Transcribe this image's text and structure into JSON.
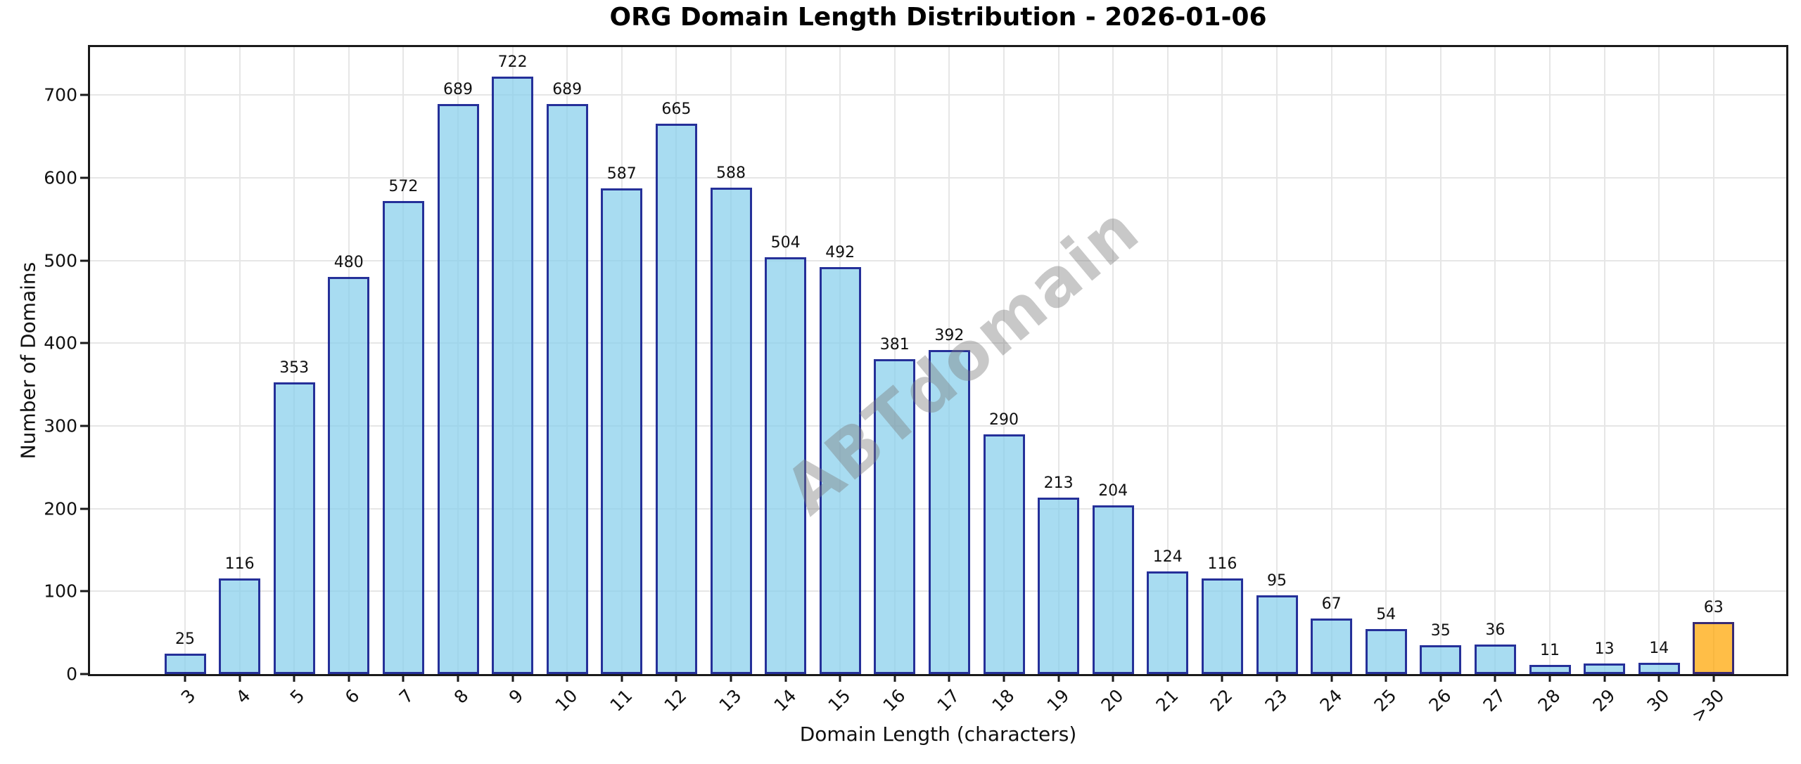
{
  "figure": {
    "title": "ORG Domain Length Distribution - 2026-01-06",
    "watermark": "ABTdomain"
  },
  "chart_data": {
    "type": "bar",
    "title": "ORG Domain Length Distribution - 2026-01-06",
    "xlabel": "Domain Length (characters)",
    "ylabel": "Number of Domains",
    "categories": [
      "3",
      "4",
      "5",
      "6",
      "7",
      "8",
      "9",
      "10",
      "11",
      "12",
      "13",
      "14",
      "15",
      "16",
      "17",
      "18",
      "19",
      "20",
      "21",
      "22",
      "23",
      "24",
      "25",
      "26",
      "27",
      "28",
      "29",
      "30",
      ">30"
    ],
    "values": [
      25,
      116,
      353,
      480,
      572,
      689,
      722,
      689,
      587,
      665,
      588,
      504,
      492,
      381,
      392,
      290,
      213,
      204,
      124,
      116,
      95,
      67,
      54,
      35,
      36,
      11,
      13,
      14,
      63
    ],
    "bar_value_labels_shown": true,
    "ylim": [
      0,
      758
    ],
    "yticks": [
      0,
      100,
      200,
      300,
      400,
      500,
      600,
      700
    ],
    "grid": true,
    "legend": "none",
    "highlight_category": ">30",
    "colors": {
      "bar_fill": "#87CEEB",
      "bar_edge": "#000080",
      "highlight_fill": "#FFA500",
      "bar_alpha": 0.72,
      "edge_alpha": 0.78,
      "grid_color": "#E6E6E6",
      "spine_color": "#1A1A1A",
      "watermark_color": "#7D7D7D",
      "watermark_alpha": 0.42,
      "text_color": "#111111"
    }
  }
}
